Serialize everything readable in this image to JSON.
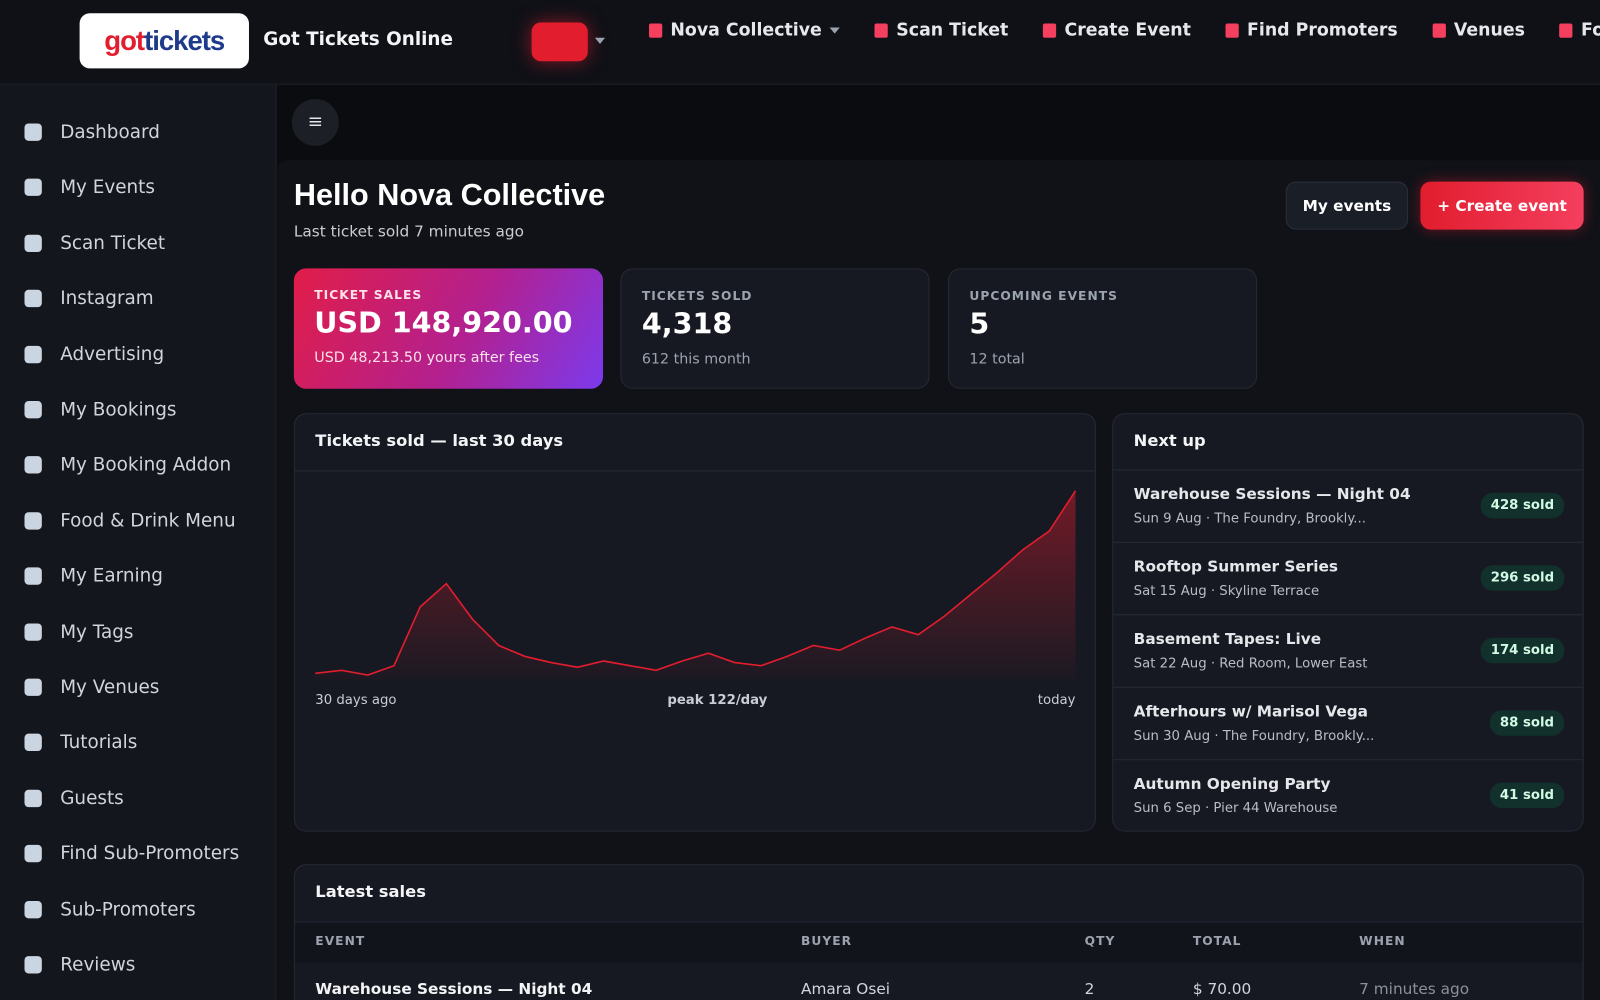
{
  "header": {
    "logo": {
      "part1": "got",
      "part2": "tickets"
    },
    "site_name": "Got Tickets Online",
    "nav": [
      "Nova Collective",
      "Scan Ticket",
      "Create Event",
      "Find Promoters",
      "Venues",
      "For"
    ]
  },
  "sidebar": [
    "Dashboard",
    "My Events",
    "Scan Ticket",
    "Instagram",
    "Advertising",
    "My Bookings",
    "My Booking Addon",
    "Food & Drink Menu",
    "My Earning",
    "My Tags",
    "My Venues",
    "Tutorials",
    "Guests",
    "Find Sub-Promoters",
    "Sub-Promoters",
    "Reviews"
  ],
  "menu_button": "≡",
  "greeting": {
    "title": "Hello Nova Collective",
    "subtitle": "Last ticket sold 7 minutes ago"
  },
  "buttons": [
    "My events",
    "+ Create event"
  ],
  "stats": [
    {
      "label": "TICKET SALES",
      "value": "USD 148,920.00",
      "note": "USD 48,213.50 yours after fees"
    },
    {
      "label": "TICKETS SOLD",
      "value": "4,318",
      "note": "612 this month"
    },
    {
      "label": "UPCOMING EVENTS",
      "value": "5",
      "note": "12 total"
    }
  ],
  "chart_data": {
    "type": "area",
    "title": "Tickets sold — last 30 days",
    "color": "#e11d2e",
    "values": [
      4,
      6,
      3,
      9,
      47,
      62,
      39,
      22,
      15,
      11,
      8,
      12,
      9,
      6,
      12,
      17,
      11,
      9,
      15,
      22,
      19,
      27,
      34,
      29,
      41,
      55,
      69,
      84,
      96,
      122
    ],
    "start_label": "30 days ago",
    "peak_label": "peak 122/day",
    "end_label": "today"
  },
  "next_up": {
    "title": "Next up",
    "events": [
      {
        "name": "Warehouse Sessions — Night 04",
        "details": "Sun 9 Aug · The Foundry, Brookly...",
        "sold": "428 sold"
      },
      {
        "name": "Rooftop Summer Series",
        "details": "Sat 15 Aug · Skyline Terrace",
        "sold": "296 sold"
      },
      {
        "name": "Basement Tapes: Live",
        "details": "Sat 22 Aug · Red Room, Lower East",
        "sold": "174 sold"
      },
      {
        "name": "Afterhours w/ Marisol Vega",
        "details": "Sun 30 Aug · The Foundry, Brookly...",
        "sold": "88 sold"
      },
      {
        "name": "Autumn Opening Party",
        "details": "Sun 6 Sep · Pier 44 Warehouse",
        "sold": "41 sold"
      }
    ]
  },
  "latest_sales": {
    "title": "Latest sales",
    "columns": [
      "EVENT",
      "BUYER",
      "QTY",
      "TOTAL",
      "WHEN"
    ],
    "rows": [
      [
        "Warehouse Sessions — Night 04",
        "Amara Osei",
        "2",
        "$ 70.00",
        "7 minutes ago"
      ]
    ]
  }
}
